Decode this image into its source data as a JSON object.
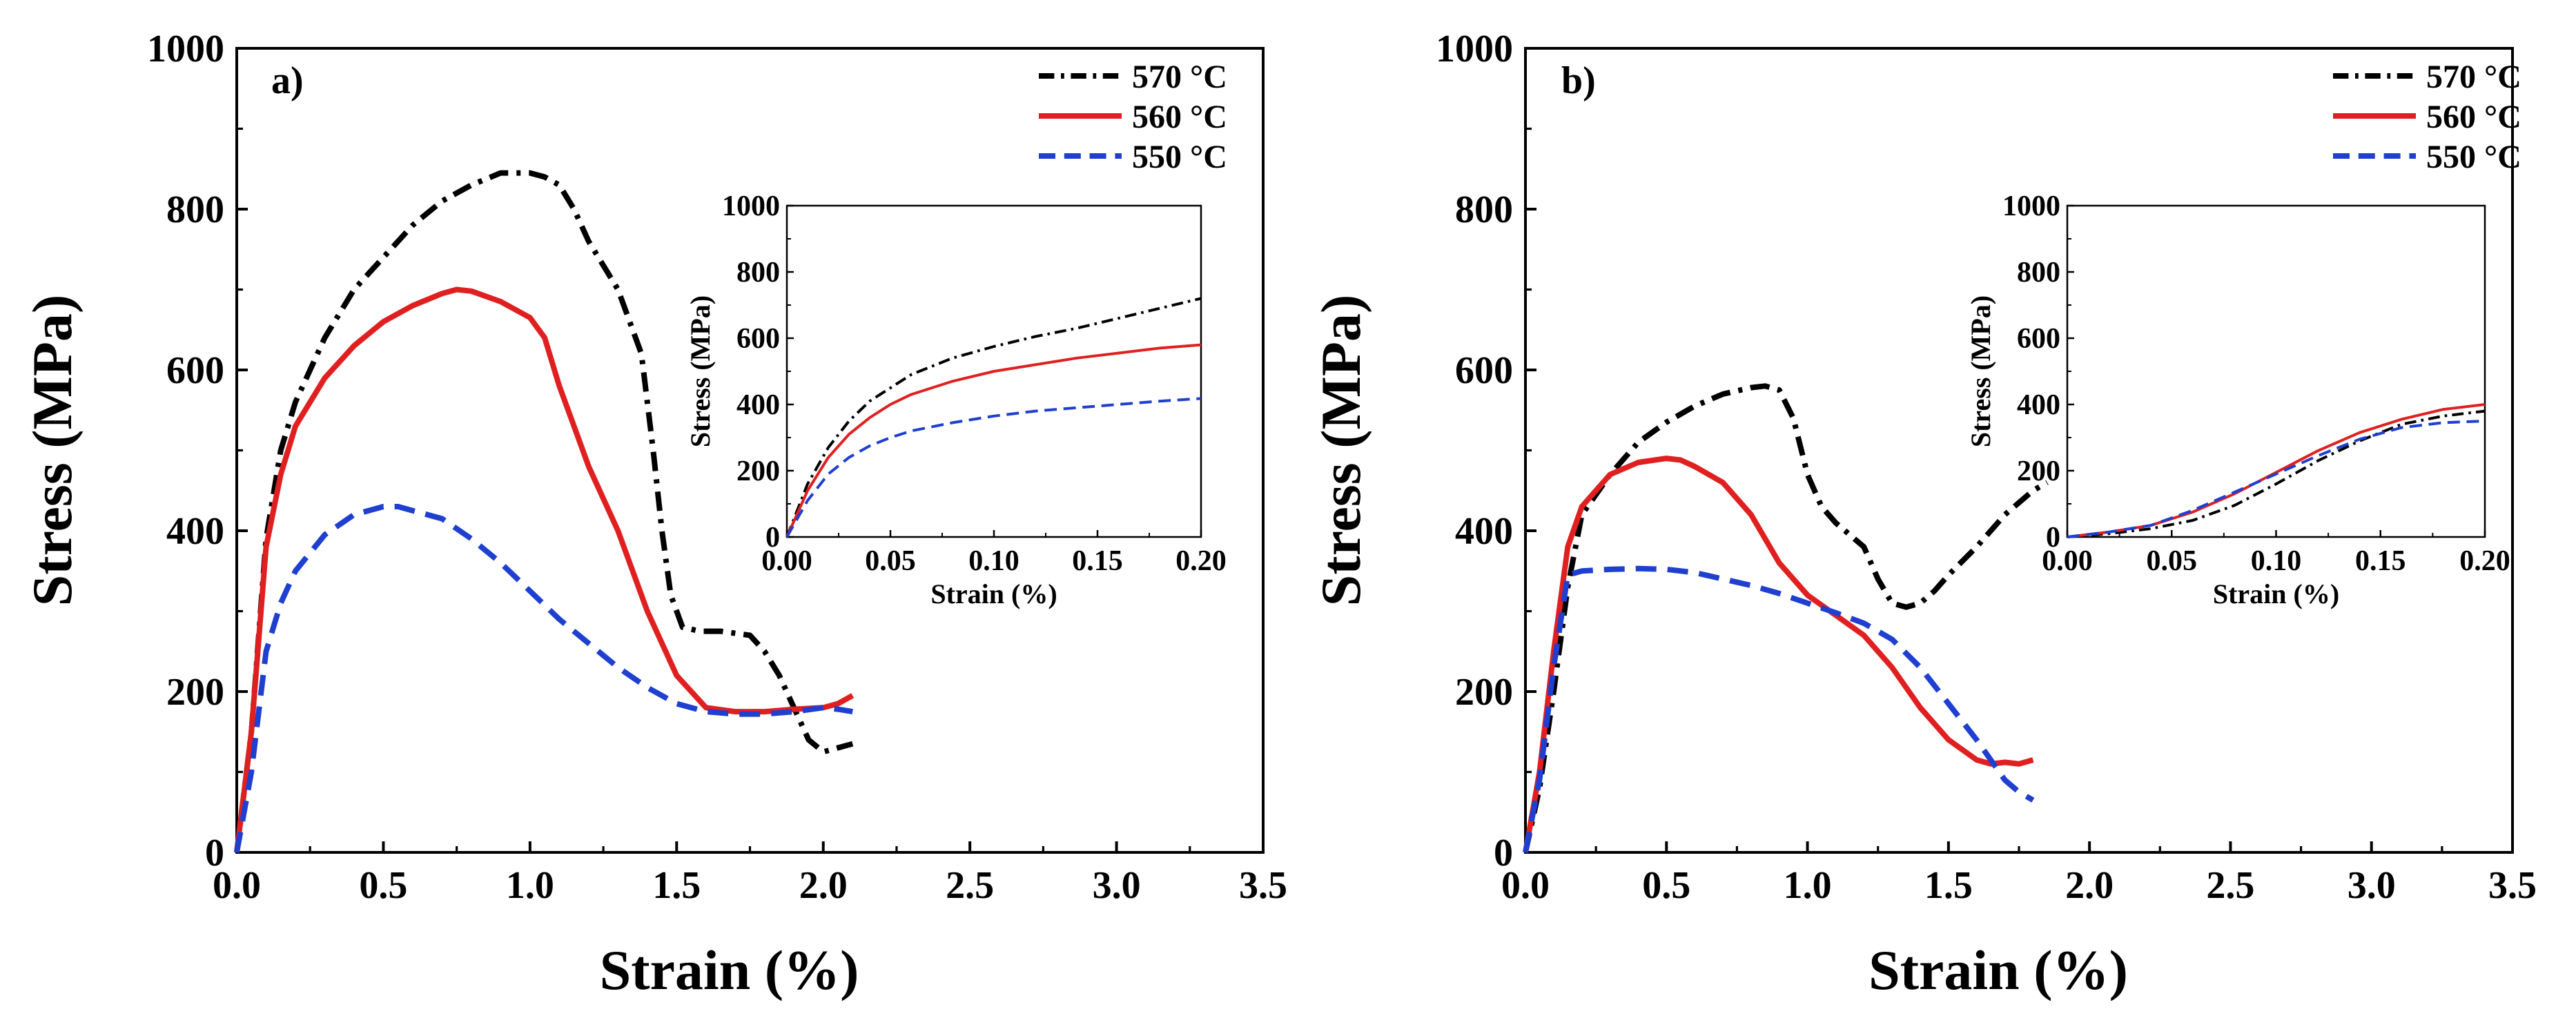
{
  "figure": {
    "panels": [
      "a)",
      "b)"
    ]
  },
  "chart_data": [
    {
      "panel": "a)",
      "type": "line",
      "xlabel": "Strain (%)",
      "ylabel": "Stress (MPa)",
      "xlim": [
        0,
        3.5
      ],
      "ylim": [
        0,
        1000
      ],
      "xticks": [
        "0.0",
        "0.5",
        "1.0",
        "1.5",
        "2.0",
        "2.5",
        "3.0",
        "3.5"
      ],
      "yticks": [
        "0",
        "200",
        "400",
        "600",
        "800",
        "1000"
      ],
      "legend": "top-right",
      "series": [
        {
          "name": "570 °C",
          "color": "#000000",
          "style": "dashdot",
          "x": [
            0,
            0.05,
            0.1,
            0.15,
            0.2,
            0.3,
            0.4,
            0.5,
            0.6,
            0.7,
            0.8,
            0.9,
            1.0,
            1.05,
            1.1,
            1.15,
            1.2,
            1.3,
            1.38,
            1.42,
            1.45,
            1.48,
            1.52,
            1.58,
            1.65,
            1.75,
            1.8,
            1.85,
            1.9,
            1.95,
            2.0,
            2.05,
            2.1
          ],
          "y": [
            0,
            150,
            390,
            500,
            560,
            640,
            700,
            740,
            780,
            810,
            830,
            845,
            845,
            840,
            830,
            800,
            760,
            700,
            620,
            500,
            400,
            320,
            280,
            275,
            275,
            270,
            250,
            220,
            180,
            140,
            125,
            130,
            135
          ]
        },
        {
          "name": "560 °C",
          "color": "#e02020",
          "style": "solid",
          "x": [
            0,
            0.05,
            0.1,
            0.15,
            0.2,
            0.3,
            0.4,
            0.5,
            0.6,
            0.7,
            0.75,
            0.8,
            0.9,
            1.0,
            1.05,
            1.1,
            1.15,
            1.2,
            1.3,
            1.4,
            1.5,
            1.6,
            1.7,
            1.8,
            1.9,
            2.0,
            2.05,
            2.1
          ],
          "y": [
            0,
            150,
            380,
            470,
            530,
            590,
            630,
            660,
            680,
            695,
            700,
            698,
            685,
            665,
            640,
            580,
            530,
            480,
            400,
            300,
            220,
            180,
            175,
            175,
            178,
            180,
            185,
            195
          ]
        },
        {
          "name": "550 °C",
          "color": "#1f3fd1",
          "style": "dashed",
          "x": [
            0,
            0.05,
            0.1,
            0.15,
            0.2,
            0.3,
            0.4,
            0.5,
            0.55,
            0.6,
            0.7,
            0.8,
            0.9,
            1.0,
            1.1,
            1.2,
            1.3,
            1.4,
            1.5,
            1.6,
            1.7,
            1.8,
            1.9,
            2.0,
            2.05,
            2.1
          ],
          "y": [
            0,
            100,
            250,
            310,
            350,
            395,
            420,
            430,
            430,
            425,
            415,
            390,
            360,
            325,
            290,
            260,
            230,
            205,
            185,
            175,
            172,
            172,
            175,
            180,
            178,
            175
          ]
        }
      ],
      "inset": {
        "xlabel": "Strain (%)",
        "ylabel": "Stress (MPa)",
        "xlim": [
          0,
          0.2
        ],
        "ylim": [
          0,
          1000
        ],
        "xticks": [
          "0.00",
          "0.05",
          "0.10",
          "0.15",
          "0.20"
        ],
        "yticks": [
          "0",
          "200",
          "400",
          "600",
          "800",
          "1000"
        ],
        "series": [
          {
            "name": "570 °C",
            "color": "#000000",
            "style": "dashdot",
            "x": [
              0,
              0.01,
              0.02,
              0.03,
              0.04,
              0.05,
              0.06,
              0.08,
              0.1,
              0.12,
              0.14,
              0.16,
              0.18,
              0.2
            ],
            "y": [
              0,
              160,
              270,
              350,
              410,
              450,
              490,
              540,
              575,
              605,
              630,
              660,
              690,
              720
            ]
          },
          {
            "name": "560 °C",
            "color": "#e02020",
            "style": "solid",
            "x": [
              0,
              0.01,
              0.02,
              0.03,
              0.04,
              0.05,
              0.06,
              0.08,
              0.1,
              0.12,
              0.14,
              0.16,
              0.18,
              0.2
            ],
            "y": [
              0,
              140,
              240,
              310,
              360,
              400,
              430,
              470,
              500,
              520,
              540,
              555,
              570,
              580
            ]
          },
          {
            "name": "550 °C",
            "color": "#1f3fd1",
            "style": "dashed",
            "x": [
              0,
              0.01,
              0.02,
              0.03,
              0.04,
              0.05,
              0.06,
              0.08,
              0.1,
              0.12,
              0.14,
              0.16,
              0.18,
              0.2
            ],
            "y": [
              0,
              110,
              190,
              240,
              275,
              300,
              320,
              345,
              365,
              380,
              390,
              400,
              410,
              418
            ]
          }
        ]
      }
    },
    {
      "panel": "b)",
      "type": "line",
      "xlabel": "Strain (%)",
      "ylabel": "Stress (MPa)",
      "xlim": [
        0,
        3.5
      ],
      "ylim": [
        0,
        1000
      ],
      "xticks": [
        "0.0",
        "0.5",
        "1.0",
        "1.5",
        "2.0",
        "2.5",
        "3.0",
        "3.5"
      ],
      "yticks": [
        "0",
        "200",
        "400",
        "600",
        "800",
        "1000"
      ],
      "legend": "top-right",
      "series": [
        {
          "name": "570 °C",
          "color": "#000000",
          "style": "dashdot",
          "x": [
            0,
            0.05,
            0.1,
            0.15,
            0.2,
            0.3,
            0.4,
            0.5,
            0.6,
            0.7,
            0.8,
            0.85,
            0.9,
            0.95,
            1.0,
            1.05,
            1.1,
            1.2,
            1.25,
            1.3,
            1.35,
            1.4,
            1.45,
            1.5,
            1.6,
            1.7,
            1.8,
            1.85
          ],
          "y": [
            0,
            80,
            200,
            330,
            420,
            470,
            510,
            535,
            555,
            570,
            578,
            580,
            575,
            540,
            470,
            430,
            410,
            380,
            340,
            310,
            305,
            310,
            325,
            345,
            380,
            420,
            450,
            460
          ]
        },
        {
          "name": "560 °C",
          "color": "#e02020",
          "style": "solid",
          "x": [
            0,
            0.05,
            0.1,
            0.15,
            0.2,
            0.3,
            0.4,
            0.5,
            0.55,
            0.6,
            0.7,
            0.8,
            0.9,
            1.0,
            1.1,
            1.2,
            1.3,
            1.4,
            1.5,
            1.6,
            1.65,
            1.7,
            1.75,
            1.8
          ],
          "y": [
            0,
            100,
            250,
            380,
            430,
            470,
            485,
            490,
            488,
            480,
            460,
            420,
            360,
            320,
            295,
            270,
            230,
            180,
            140,
            115,
            110,
            112,
            110,
            115
          ]
        },
        {
          "name": "550 °C",
          "color": "#1f3fd1",
          "style": "dashed",
          "x": [
            0,
            0.05,
            0.1,
            0.15,
            0.2,
            0.3,
            0.4,
            0.5,
            0.6,
            0.7,
            0.8,
            0.9,
            1.0,
            1.1,
            1.2,
            1.3,
            1.4,
            1.5,
            1.6,
            1.7,
            1.75,
            1.8
          ],
          "y": [
            0,
            90,
            230,
            345,
            350,
            352,
            353,
            352,
            348,
            340,
            332,
            322,
            310,
            298,
            285,
            265,
            230,
            185,
            140,
            90,
            75,
            65
          ]
        }
      ],
      "inset": {
        "xlabel": "Strain (%)",
        "ylabel": "Stress (MPa)",
        "xlim": [
          0,
          0.2
        ],
        "ylim": [
          0,
          1000
        ],
        "xticks": [
          "0.00",
          "0.05",
          "0.10",
          "0.15",
          "0.20"
        ],
        "yticks": [
          "0",
          "200",
          "400",
          "600",
          "800",
          "1000"
        ],
        "series": [
          {
            "name": "570 °C",
            "color": "#000000",
            "style": "dashdot",
            "x": [
              0,
              0.02,
              0.04,
              0.06,
              0.08,
              0.1,
              0.12,
              0.14,
              0.16,
              0.18,
              0.2
            ],
            "y": [
              0,
              10,
              25,
              50,
              95,
              160,
              230,
              290,
              340,
              365,
              380
            ]
          },
          {
            "name": "560 °C",
            "color": "#e02020",
            "style": "solid",
            "x": [
              0,
              0.02,
              0.04,
              0.06,
              0.08,
              0.1,
              0.12,
              0.14,
              0.16,
              0.18,
              0.2
            ],
            "y": [
              0,
              15,
              35,
              75,
              130,
              195,
              260,
              315,
              355,
              385,
              400
            ]
          },
          {
            "name": "550 °C",
            "color": "#1f3fd1",
            "style": "dashed",
            "x": [
              0,
              0.02,
              0.04,
              0.06,
              0.08,
              0.1,
              0.12,
              0.14,
              0.16,
              0.18,
              0.2
            ],
            "y": [
              0,
              15,
              35,
              80,
              135,
              190,
              245,
              295,
              330,
              345,
              350
            ]
          }
        ]
      }
    }
  ]
}
